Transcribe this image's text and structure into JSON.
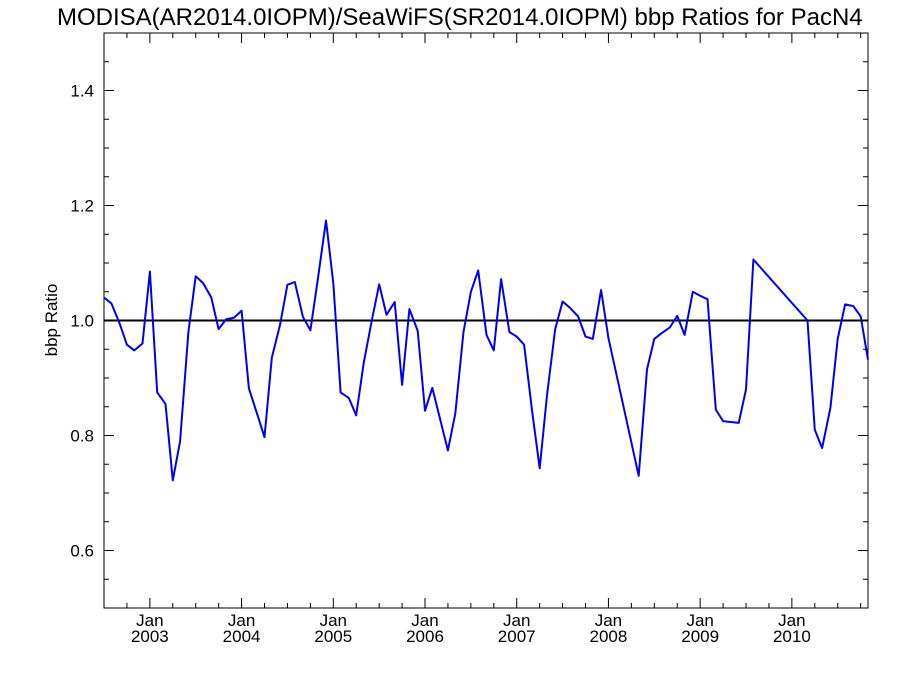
{
  "chart_data": {
    "type": "line",
    "title": "MODISA(AR2014.0IOPM)/SeaWiFS(SR2014.0IOPM)  bbp Ratios for PacN4",
    "ylabel": "bbp Ratio",
    "xlabel": "",
    "xlim": [
      2002.5,
      2010.83
    ],
    "ylim": [
      0.5,
      1.5
    ],
    "y_ticks": [
      {
        "value": 0.6,
        "label": "0.6"
      },
      {
        "value": 0.8,
        "label": "0.8"
      },
      {
        "value": 1.0,
        "label": "1.0"
      },
      {
        "value": 1.2,
        "label": "1.2"
      },
      {
        "value": 1.4,
        "label": "1.4"
      }
    ],
    "x_ticks": [
      {
        "value": 2003,
        "month": "Jan",
        "year": "2003"
      },
      {
        "value": 2004,
        "month": "Jan",
        "year": "2004"
      },
      {
        "value": 2005,
        "month": "Jan",
        "year": "2005"
      },
      {
        "value": 2006,
        "month": "Jan",
        "year": "2006"
      },
      {
        "value": 2007,
        "month": "Jan",
        "year": "2007"
      },
      {
        "value": 2008,
        "month": "Jan",
        "year": "2008"
      },
      {
        "value": 2009,
        "month": "Jan",
        "year": "2009"
      },
      {
        "value": 2010,
        "month": "Jan",
        "year": "2010"
      }
    ],
    "reference_line": 1.0,
    "colors": {
      "series": "#0000ee",
      "reference": "#000000"
    },
    "series": [
      {
        "x": [
          2002.5,
          2002.58,
          2002.67,
          2002.75,
          2002.83,
          2002.92,
          2003.0,
          2003.08,
          2003.17,
          2003.25,
          2003.33,
          2003.42,
          2003.5,
          2003.58,
          2003.67,
          2003.75,
          2003.83,
          2003.92,
          2004.0,
          2004.08,
          2004.17,
          2004.25,
          2004.33,
          2004.42,
          2004.5,
          2004.58,
          2004.67,
          2004.75,
          2004.83,
          2004.92,
          2005.0,
          2005.08,
          2005.17,
          2005.25,
          2005.33,
          2005.42,
          2005.5,
          2005.58,
          2005.67,
          2005.75,
          2005.83,
          2005.92,
          2006.0,
          2006.08,
          2006.17,
          2006.25,
          2006.33,
          2006.42,
          2006.5,
          2006.58,
          2006.67,
          2006.75,
          2006.83,
          2006.92,
          2007.0,
          2007.08,
          2007.17,
          2007.25,
          2007.33,
          2007.42,
          2007.5,
          2007.58,
          2007.67,
          2007.75,
          2007.83,
          2007.92,
          2008.0,
          2008.33,
          2008.42,
          2008.5,
          2008.58,
          2008.67,
          2008.75,
          2008.83,
          2008.92,
          2009.0,
          2009.08,
          2009.17,
          2009.25,
          2009.42,
          2009.5,
          2009.58,
          2010.17,
          2010.25,
          2010.33,
          2010.42,
          2010.5,
          2010.58,
          2010.67,
          2010.75,
          2010.83
        ],
        "y": [
          1.04,
          1.03,
          0.995,
          0.958,
          0.948,
          0.96,
          1.085,
          0.875,
          0.855,
          0.722,
          0.79,
          0.98,
          1.077,
          1.065,
          1.04,
          0.985,
          1.002,
          1.005,
          1.017,
          0.882,
          0.837,
          0.797,
          0.935,
          0.993,
          1.062,
          1.067,
          1.006,
          0.983,
          1.07,
          1.174,
          1.065,
          0.875,
          0.865,
          0.835,
          0.925,
          1.0,
          1.063,
          1.01,
          1.032,
          0.888,
          1.02,
          0.982,
          0.843,
          0.883,
          0.825,
          0.774,
          0.838,
          0.98,
          1.05,
          1.087,
          0.975,
          0.948,
          1.072,
          0.98,
          0.972,
          0.958,
          0.84,
          0.743,
          0.87,
          0.985,
          1.033,
          1.022,
          1.007,
          0.972,
          0.968,
          1.053,
          0.97,
          0.73,
          0.915,
          0.968,
          0.978,
          0.988,
          1.008,
          0.975,
          1.05,
          1.043,
          1.037,
          0.845,
          0.825,
          0.822,
          0.88,
          1.106,
          1.0,
          0.81,
          0.778,
          0.848,
          0.968,
          1.028,
          1.025,
          1.007,
          0.932
        ]
      }
    ]
  }
}
